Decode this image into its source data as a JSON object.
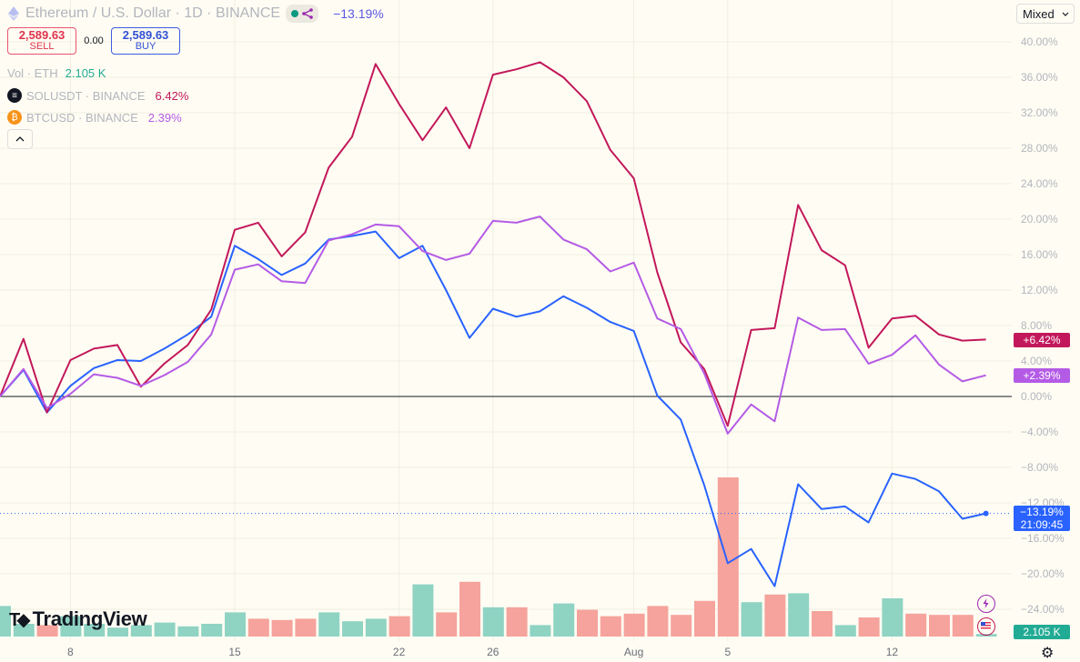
{
  "header": {
    "title": "Ethereum / U.S. Dollar · 1D · BINANCE",
    "change": "−13.19%"
  },
  "trade": {
    "sell_price": "2,589.63",
    "sell_label": "SELL",
    "spread": "0.00",
    "buy_price": "2,589.63",
    "buy_label": "BUY"
  },
  "legend": {
    "vol_label": "Vol · ETH",
    "vol_value": "2.105 K",
    "sol_label": "SOLUSDT · BINANCE",
    "sol_value": "6.42%",
    "btc_label": "BTCUSD · BINANCE",
    "btc_value": "2.39%"
  },
  "scale_mode": "Mixed",
  "tags": {
    "sol": "+6.42%",
    "btc": "+2.39%",
    "eth": "−13.19%",
    "countdown": "21:09:45",
    "volume": "2.105 K"
  },
  "brand": "TradingView",
  "colors": {
    "eth": "#2962ff",
    "sol": "#c2185b",
    "btc": "#b45be6",
    "vol_up": "#8fd3c3",
    "vol_down": "#f5a39c",
    "zero_line": "#131722"
  },
  "chart_data": {
    "type": "line",
    "y_ticks": [
      "40.00%",
      "36.00%",
      "32.00%",
      "28.00%",
      "24.00%",
      "20.00%",
      "16.00%",
      "12.00%",
      "8.00%",
      "4.00%",
      "0.00%",
      "−4.00%",
      "−8.00%",
      "−12.00%",
      "−16.00%",
      "−20.00%",
      "−24.00%"
    ],
    "x_ticks": [
      {
        "label": "8",
        "index": 3
      },
      {
        "label": "15",
        "index": 10
      },
      {
        "label": "22",
        "index": 17
      },
      {
        "label": "26",
        "index": 21
      },
      {
        "label": "Aug",
        "index": 27
      },
      {
        "label": "5",
        "index": 31
      },
      {
        "label": "12",
        "index": 38
      }
    ],
    "ylim": [
      -26,
      42
    ],
    "series": [
      {
        "name": "Ethereum / U.S. Dollar",
        "key": "eth",
        "values": [
          0,
          3,
          -1.8,
          1.2,
          3.2,
          4.1,
          4.0,
          5.4,
          7.0,
          9.0,
          17.0,
          15.5,
          13.7,
          15.0,
          17.7,
          18.1,
          18.6,
          15.6,
          17.0,
          12.0,
          6.6,
          9.9,
          9.0,
          9.6,
          11.3,
          10.0,
          8.4,
          7.4,
          0.1,
          -2.6,
          -10.0,
          -18.8,
          -17.2,
          -21.4,
          -9.9,
          -12.7,
          -12.4,
          -14.2,
          -8.7,
          -9.3,
          -10.7,
          -13.8,
          -13.19
        ]
      },
      {
        "name": "SOLUSDT · BINANCE",
        "key": "sol",
        "values": [
          0,
          6.5,
          -1.8,
          4.1,
          5.4,
          5.8,
          1.1,
          3.7,
          5.8,
          9.8,
          18.8,
          19.6,
          15.8,
          18.5,
          25.8,
          29.3,
          37.5,
          33.0,
          28.9,
          32.6,
          28.0,
          36.3,
          36.9,
          37.7,
          36.0,
          33.3,
          27.8,
          24.6,
          14.0,
          6.1,
          3.1,
          -3.3,
          7.5,
          7.7,
          21.6,
          16.5,
          14.8,
          5.5,
          8.8,
          9.1,
          7.0,
          6.3,
          6.42
        ]
      },
      {
        "name": "BTCUSD · BINANCE",
        "key": "btc",
        "values": [
          0,
          3.1,
          -1.3,
          0.3,
          2.5,
          2.1,
          1.2,
          2.4,
          3.9,
          7.0,
          14.3,
          14.9,
          13.0,
          12.8,
          17.6,
          18.3,
          19.4,
          19.2,
          16.4,
          15.4,
          16.1,
          19.8,
          19.6,
          20.3,
          17.7,
          16.6,
          14.1,
          15.1,
          8.8,
          7.6,
          2.6,
          -4.2,
          -0.9,
          -2.8,
          8.9,
          7.5,
          7.6,
          3.7,
          4.7,
          6.9,
          3.6,
          1.7,
          2.39
        ]
      }
    ],
    "volume": {
      "name": "Vol · ETH",
      "values": [
        2.4,
        1.0,
        0.9,
        1.6,
        1.0,
        0.7,
        0.9,
        1.1,
        0.8,
        1.0,
        1.9,
        1.4,
        1.3,
        1.4,
        1.9,
        1.2,
        1.4,
        1.6,
        4.1,
        1.9,
        4.3,
        2.3,
        2.3,
        0.9,
        2.6,
        2.1,
        1.6,
        1.8,
        2.4,
        1.7,
        2.8,
        12.5,
        2.7,
        3.3,
        3.4,
        2.0,
        0.9,
        1.5,
        3.0,
        1.8,
        1.7,
        1.7,
        0.2
      ],
      "up": [
        true,
        true,
        false,
        true,
        true,
        true,
        true,
        true,
        true,
        true,
        true,
        false,
        false,
        false,
        true,
        true,
        true,
        false,
        true,
        false,
        false,
        true,
        false,
        true,
        true,
        false,
        false,
        false,
        false,
        false,
        false,
        false,
        true,
        false,
        true,
        false,
        true,
        false,
        true,
        false,
        false,
        false,
        true
      ]
    }
  }
}
